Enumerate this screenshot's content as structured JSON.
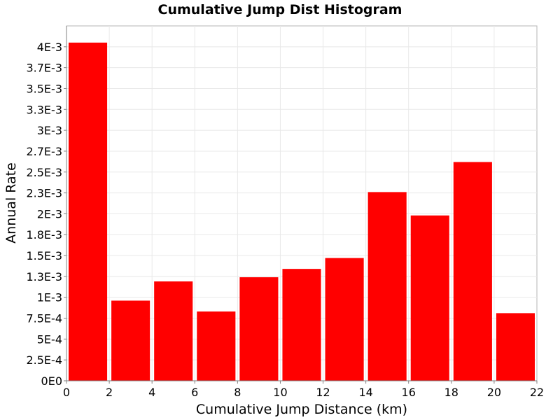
{
  "chart_data": {
    "type": "bar",
    "title": "Cumulative Jump Dist Histogram",
    "xlabel": "Cumulative Jump Distance (km)",
    "ylabel": "Annual Rate",
    "xlim": [
      0,
      22
    ],
    "ylim": [
      0,
      0.00425
    ],
    "grid": true,
    "bar_color": "#ff0000",
    "x_ticks": [
      {
        "value": 0,
        "label": "0"
      },
      {
        "value": 2,
        "label": "2"
      },
      {
        "value": 4,
        "label": "4"
      },
      {
        "value": 6,
        "label": "6"
      },
      {
        "value": 8,
        "label": "8"
      },
      {
        "value": 10,
        "label": "10"
      },
      {
        "value": 12,
        "label": "12"
      },
      {
        "value": 14,
        "label": "14"
      },
      {
        "value": 16,
        "label": "16"
      },
      {
        "value": 18,
        "label": "18"
      },
      {
        "value": 20,
        "label": "20"
      },
      {
        "value": 22,
        "label": "22"
      }
    ],
    "y_ticks": [
      {
        "value": 0,
        "label": "0E0"
      },
      {
        "value": 0.00025,
        "label": "2.5E-4"
      },
      {
        "value": 0.0005,
        "label": "5E-4"
      },
      {
        "value": 0.00075,
        "label": "7.5E-4"
      },
      {
        "value": 0.001,
        "label": "1E-3"
      },
      {
        "value": 0.00125,
        "label": "1.3E-3"
      },
      {
        "value": 0.0015,
        "label": "1.5E-3"
      },
      {
        "value": 0.00175,
        "label": "1.8E-3"
      },
      {
        "value": 0.002,
        "label": "2E-3"
      },
      {
        "value": 0.00225,
        "label": "2.3E-3"
      },
      {
        "value": 0.0025,
        "label": "2.5E-3"
      },
      {
        "value": 0.00275,
        "label": "2.7E-3"
      },
      {
        "value": 0.003,
        "label": "3E-3"
      },
      {
        "value": 0.00325,
        "label": "3.3E-3"
      },
      {
        "value": 0.0035,
        "label": "3.5E-3"
      },
      {
        "value": 0.00375,
        "label": "3.7E-3"
      },
      {
        "value": 0.004,
        "label": "4E-3"
      }
    ],
    "bars": [
      {
        "x_start": 0,
        "x_end": 2,
        "value": 0.00405
      },
      {
        "x_start": 2,
        "x_end": 4,
        "value": 0.00096
      },
      {
        "x_start": 4,
        "x_end": 6,
        "value": 0.00119
      },
      {
        "x_start": 6,
        "x_end": 8,
        "value": 0.00083
      },
      {
        "x_start": 8,
        "x_end": 10,
        "value": 0.00124
      },
      {
        "x_start": 10,
        "x_end": 12,
        "value": 0.00134
      },
      {
        "x_start": 12,
        "x_end": 14,
        "value": 0.00147
      },
      {
        "x_start": 14,
        "x_end": 16,
        "value": 0.00226
      },
      {
        "x_start": 16,
        "x_end": 18,
        "value": 0.00198
      },
      {
        "x_start": 18,
        "x_end": 20,
        "value": 0.00262
      },
      {
        "x_start": 20,
        "x_end": 22,
        "value": 0.00081
      }
    ]
  }
}
